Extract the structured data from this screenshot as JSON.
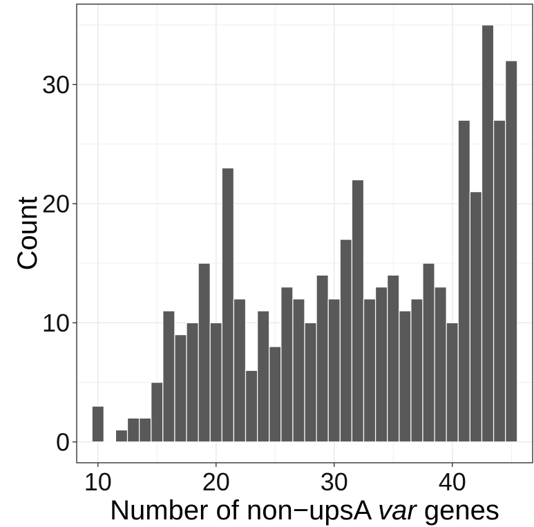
{
  "chart_data": {
    "type": "bar",
    "title": "",
    "xlabel_parts": [
      {
        "text": "Number of non−upsA ",
        "italic": false
      },
      {
        "text": "var",
        "italic": true
      },
      {
        "text": " genes",
        "italic": false
      }
    ],
    "ylabel": "Count",
    "x": [
      10,
      11,
      12,
      13,
      14,
      15,
      16,
      17,
      18,
      19,
      20,
      21,
      22,
      23,
      24,
      25,
      26,
      27,
      28,
      29,
      30,
      31,
      32,
      33,
      34,
      35,
      36,
      37,
      38,
      39,
      40,
      41,
      42,
      43,
      44,
      45
    ],
    "values": [
      3,
      0,
      1,
      2,
      2,
      5,
      11,
      9,
      10,
      15,
      10,
      23,
      12,
      6,
      11,
      8,
      13,
      12,
      10,
      14,
      12,
      17,
      22,
      12,
      13,
      14,
      11,
      12,
      15,
      13,
      10,
      27,
      21,
      35,
      27,
      32
    ],
    "bin_width": 1,
    "xlim": [
      8.2,
      46.8
    ],
    "ylim": [
      -1.75,
      36.75
    ],
    "x_ticks": [
      10,
      20,
      30,
      40
    ],
    "y_ticks": [
      0,
      10,
      20,
      30
    ],
    "x_tick_labels": [
      "10",
      "20",
      "30",
      "40"
    ],
    "y_tick_labels": [
      "0",
      "10",
      "20",
      "30"
    ],
    "grid": true,
    "bar_color": "#595959",
    "grid_color": "#ebebeb",
    "panel_border_color": "#333333",
    "background": "#ffffff"
  }
}
